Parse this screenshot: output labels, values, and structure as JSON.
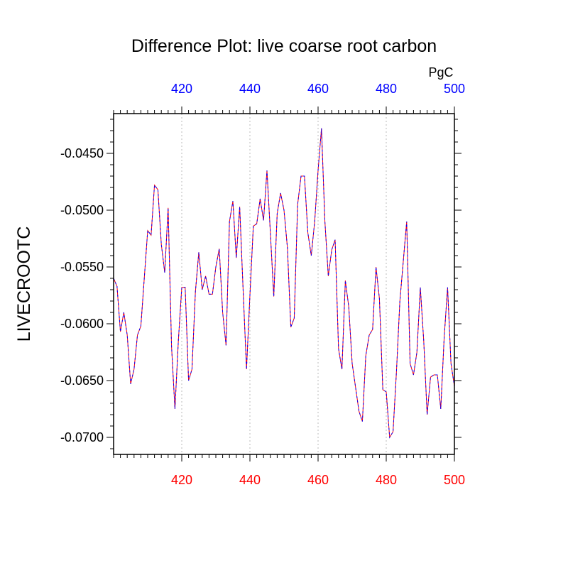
{
  "chart_data": {
    "type": "line",
    "title": "Difference Plot: live coarse root carbon",
    "units": "PgC",
    "ylabel": "LIVECROOTC",
    "xlabel": "",
    "xlim": [
      400,
      500
    ],
    "ylim": [
      -0.0715,
      -0.0415
    ],
    "x_ticks": [
      420,
      440,
      460,
      480,
      500
    ],
    "y_ticks": [
      -0.045,
      -0.05,
      -0.055,
      -0.06,
      -0.065,
      -0.07
    ],
    "y_tick_labels": [
      "-0.0450",
      "-0.0500",
      "-0.0550",
      "-0.0600",
      "-0.0650",
      "-0.0700"
    ],
    "grid": "vertical dotted at x ticks",
    "colors": {
      "top_axis_labels": "#0000ff",
      "bottom_axis_labels": "#ff0000",
      "series_a": "#ff0000",
      "series_b": "#0000ff",
      "grid": "#bbbbbb"
    },
    "series": [
      {
        "x": [
          400,
          401,
          402,
          403,
          404,
          405,
          406,
          407,
          408,
          409,
          410,
          411,
          412,
          413,
          414,
          415,
          416,
          417,
          418,
          419,
          420,
          421,
          422,
          423,
          424,
          425,
          426,
          427,
          428,
          429,
          430,
          431,
          432,
          433,
          434,
          435,
          436,
          437,
          438,
          439,
          440,
          441,
          442,
          443,
          444,
          445,
          446,
          447,
          448,
          449,
          450,
          451,
          452,
          453,
          454,
          455,
          456,
          457,
          458,
          459,
          460,
          461,
          462,
          463,
          464,
          465,
          466,
          467,
          468,
          469,
          470,
          471,
          472,
          473,
          474,
          475,
          476,
          477,
          478,
          479,
          480,
          481,
          482,
          483,
          484,
          485,
          486,
          487,
          488,
          489,
          490,
          491,
          492,
          493,
          494,
          495,
          496,
          497,
          498,
          499,
          500
        ],
        "values": [
          -0.056,
          -0.0567,
          -0.0607,
          -0.059,
          -0.061,
          -0.0653,
          -0.064,
          -0.061,
          -0.0602,
          -0.056,
          -0.0518,
          -0.0522,
          -0.0478,
          -0.0482,
          -0.053,
          -0.0555,
          -0.0498,
          -0.062,
          -0.0675,
          -0.0615,
          -0.0568,
          -0.0568,
          -0.065,
          -0.064,
          -0.0572,
          -0.0537,
          -0.057,
          -0.0558,
          -0.0574,
          -0.0574,
          -0.055,
          -0.0534,
          -0.059,
          -0.0619,
          -0.051,
          -0.0492,
          -0.0542,
          -0.0497,
          -0.057,
          -0.064,
          -0.0575,
          -0.0514,
          -0.0512,
          -0.049,
          -0.0509,
          -0.0465,
          -0.052,
          -0.0576,
          -0.0503,
          -0.0485,
          -0.05,
          -0.0533,
          -0.0603,
          -0.0595,
          -0.0495,
          -0.047,
          -0.047,
          -0.052,
          -0.054,
          -0.051,
          -0.0465,
          -0.0428,
          -0.051,
          -0.0558,
          -0.0535,
          -0.0526,
          -0.0622,
          -0.064,
          -0.0562,
          -0.0585,
          -0.0635,
          -0.0656,
          -0.0677,
          -0.0686,
          -0.0628,
          -0.061,
          -0.0605,
          -0.055,
          -0.0578,
          -0.0658,
          -0.066,
          -0.07,
          -0.0695,
          -0.0642,
          -0.058,
          -0.0545,
          -0.051,
          -0.0635,
          -0.0645,
          -0.0625,
          -0.0568,
          -0.0615,
          -0.068,
          -0.0647,
          -0.0645,
          -0.0645,
          -0.0675,
          -0.0612,
          -0.0568,
          -0.0635,
          -0.0655
        ]
      }
    ]
  }
}
